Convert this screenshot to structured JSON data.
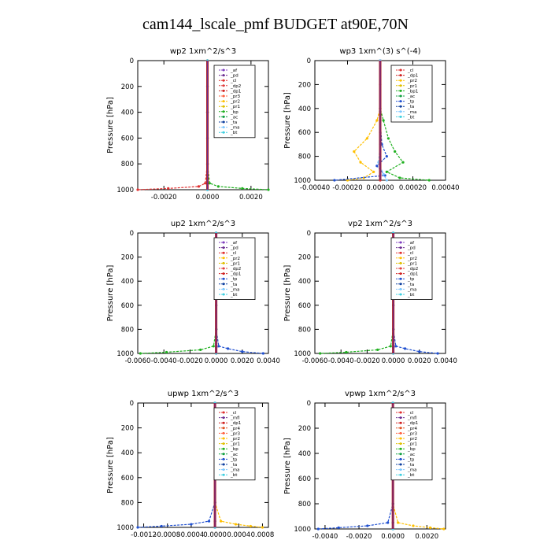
{
  "title": "cam144_lscale_pmf  BUDGET at90E,70N",
  "chart_data": [
    {
      "type": "line",
      "title": "wp2   1xm^2/s^3",
      "ylabel": "Pressure  [hPa]",
      "xlim": [
        -0.0032,
        0.0028
      ],
      "ylim": [
        1000,
        0
      ],
      "xticks": [
        -0.002,
        0.0,
        0.002
      ],
      "xtick_labels": [
        "-0.0020",
        "0.0000",
        "0.0020"
      ],
      "yticks": [
        0,
        200,
        400,
        600,
        800,
        1000
      ],
      "ytick_labels": [
        "0",
        "200",
        "400",
        "600",
        "800",
        "1000"
      ],
      "legend": [
        "_af",
        "_pd",
        "_cl",
        "_dp2",
        "_dp1",
        "_pr3",
        "_pr2",
        "_pr1",
        "_bp",
        "_ac",
        "_ta",
        "_ma",
        "_bt"
      ],
      "series": [
        {
          "name": "_af",
          "color": "#8040c0",
          "x": [
            0,
            0,
            0,
            0,
            0,
            0,
            0
          ],
          "y": [
            0,
            200,
            400,
            600,
            800,
            950,
            1000
          ]
        },
        {
          "name": "_pd",
          "color": "#6a2c91",
          "x": [
            0,
            0,
            0,
            0,
            0,
            0,
            0
          ],
          "y": [
            0,
            200,
            400,
            600,
            800,
            950,
            1000
          ]
        },
        {
          "name": "_cl",
          "color": "#e03030",
          "x": [
            0,
            0,
            0,
            -0.0001,
            -0.0004,
            -0.0018,
            -0.0032
          ],
          "y": [
            0,
            400,
            800,
            950,
            975,
            990,
            1000
          ]
        },
        {
          "name": "_pr1",
          "color": "#20b020",
          "x": [
            0,
            0,
            0,
            0.0001,
            0.0005,
            0.0016,
            0.0028
          ],
          "y": [
            0,
            400,
            800,
            950,
            975,
            990,
            1000
          ]
        },
        {
          "name": "_bt",
          "color": "#40d0e0",
          "x": [
            0,
            0,
            0,
            0,
            0,
            0,
            0
          ],
          "y": [
            0,
            200,
            400,
            600,
            800,
            950,
            1000
          ]
        }
      ]
    },
    {
      "type": "line",
      "title": "wp3   1xm^(3) s^(-4)",
      "ylabel": "Pressure  [hPa]",
      "xlim": [
        -0.0004,
        0.0004
      ],
      "ylim": [
        1000,
        0
      ],
      "xticks": [
        -0.0004,
        -0.0002,
        0.0,
        0.0002,
        0.0004
      ],
      "xtick_labels": [
        "-0.00040",
        "-0.00020",
        "0.00000",
        "0.00020",
        "0.00040"
      ],
      "yticks": [
        0,
        200,
        400,
        600,
        800,
        1000
      ],
      "ytick_labels": [
        "0",
        "200",
        "400",
        "600",
        "800",
        "1000"
      ],
      "legend": [
        "_cl",
        "_dp1",
        "_pr2",
        "_pr1",
        "_bp1",
        "_ac",
        "_tp",
        "_ta",
        "_ma",
        "_bt"
      ],
      "series": [
        {
          "name": "_cl",
          "color": "#e03030",
          "x": [
            0,
            0,
            0,
            0,
            0,
            0,
            0
          ],
          "y": [
            0,
            200,
            400,
            600,
            800,
            950,
            1000
          ]
        },
        {
          "name": "_pr2",
          "color": "#ffc000",
          "x": [
            0,
            0,
            -2e-05,
            -8e-05,
            -0.00016,
            -0.00012,
            -4e-05,
            -0.0001,
            -0.0002
          ],
          "y": [
            0,
            400,
            500,
            650,
            760,
            850,
            930,
            980,
            1000
          ]
        },
        {
          "name": "_bp1",
          "color": "#20b020",
          "x": [
            0,
            0,
            2e-05,
            5e-05,
            9e-05,
            0.00014,
            4e-05,
            0.00012,
            0.0003
          ],
          "y": [
            0,
            400,
            500,
            650,
            760,
            850,
            930,
            980,
            1000
          ]
        },
        {
          "name": "_tp",
          "color": "#2050d0",
          "x": [
            0,
            0,
            1e-05,
            4e-05,
            -2e-05,
            3e-05,
            -0.00028
          ],
          "y": [
            0,
            500,
            700,
            800,
            880,
            960,
            1000
          ]
        },
        {
          "name": "_ma",
          "color": "#80c8ff",
          "x": [
            0,
            0,
            0,
            -1e-05,
            2e-05,
            4e-05
          ],
          "y": [
            0,
            400,
            700,
            850,
            950,
            1000
          ]
        }
      ]
    },
    {
      "type": "line",
      "title": "up2   1xm^2/s^3",
      "ylabel": "Pressure  [hPa]",
      "xlim": [
        -0.006,
        0.004
      ],
      "ylim": [
        1000,
        0
      ],
      "xticks": [
        -0.006,
        -0.004,
        -0.002,
        0.0,
        0.002,
        0.004
      ],
      "xtick_labels": [
        "-0.0060",
        "-0.0040",
        "-0.0020",
        "0.0000",
        "0.0020",
        "0.0040"
      ],
      "yticks": [
        0,
        200,
        400,
        600,
        800,
        1000
      ],
      "ytick_labels": [
        "0",
        "200",
        "400",
        "600",
        "800",
        "1000"
      ],
      "legend": [
        "_af",
        "_pd",
        "_cl",
        "_pr2",
        "_pr1",
        "_dp2",
        "_dp1",
        "_tp",
        "_ta",
        "_ma",
        "_bt"
      ],
      "series": [
        {
          "name": "_af",
          "color": "#8040c0",
          "x": [
            0,
            0,
            0,
            0,
            0,
            0,
            0
          ],
          "y": [
            0,
            200,
            400,
            600,
            800,
            950,
            1000
          ]
        },
        {
          "name": "_cl",
          "color": "#e03030",
          "x": [
            0,
            0,
            0,
            0,
            0,
            0,
            0
          ],
          "y": [
            0,
            200,
            400,
            600,
            800,
            950,
            1000
          ]
        },
        {
          "name": "_dp1",
          "color": "#20b020",
          "x": [
            0,
            0,
            0,
            -0.0002,
            -0.0012,
            -0.0038,
            -0.0058
          ],
          "y": [
            0,
            400,
            800,
            940,
            970,
            990,
            1000
          ]
        },
        {
          "name": "_tp",
          "color": "#2050d0",
          "x": [
            0,
            0,
            0.0002,
            0.0009,
            0.002,
            0.0036
          ],
          "y": [
            0,
            800,
            940,
            960,
            985,
            1000
          ]
        },
        {
          "name": "_bt",
          "color": "#40d0e0",
          "x": [
            0,
            0,
            0,
            0,
            0,
            0,
            0
          ],
          "y": [
            0,
            200,
            400,
            600,
            800,
            950,
            1000
          ]
        }
      ]
    },
    {
      "type": "line",
      "title": "vp2   1xm^2/s^3",
      "ylabel": "Pressure  [hPa]",
      "xlim": [
        -0.006,
        0.004
      ],
      "ylim": [
        1000,
        0
      ],
      "xticks": [
        -0.006,
        -0.004,
        -0.002,
        0.0,
        0.002,
        0.004
      ],
      "xtick_labels": [
        "-0.0060",
        "-0.0040",
        "-0.0020",
        "0.0000",
        "0.0020",
        "0.0040"
      ],
      "yticks": [
        0,
        200,
        400,
        600,
        800,
        1000
      ],
      "ytick_labels": [
        "0",
        "200",
        "400",
        "600",
        "800",
        "1000"
      ],
      "legend": [
        "_af",
        "_pd",
        "_cl",
        "_pr2",
        "_pr1",
        "_dp2",
        "_dp1",
        "_tp",
        "_ta",
        "_ma",
        "_bt"
      ],
      "series": [
        {
          "name": "_af",
          "color": "#8040c0",
          "x": [
            0,
            0,
            0,
            0,
            0,
            0,
            0
          ],
          "y": [
            0,
            200,
            400,
            600,
            800,
            950,
            1000
          ]
        },
        {
          "name": "_cl",
          "color": "#e03030",
          "x": [
            0,
            0,
            0,
            0,
            0,
            0,
            0
          ],
          "y": [
            0,
            200,
            400,
            600,
            800,
            950,
            1000
          ]
        },
        {
          "name": "_dp1",
          "color": "#20b020",
          "x": [
            0,
            0,
            0,
            -0.0002,
            -0.0012,
            -0.0036,
            -0.0056
          ],
          "y": [
            0,
            400,
            800,
            940,
            970,
            990,
            1000
          ]
        },
        {
          "name": "_tp",
          "color": "#2050d0",
          "x": [
            0,
            0,
            0.0002,
            0.0009,
            0.002,
            0.0034
          ],
          "y": [
            0,
            800,
            940,
            960,
            985,
            1000
          ]
        },
        {
          "name": "_bt",
          "color": "#40d0e0",
          "x": [
            0,
            0,
            0,
            0,
            0,
            0,
            0
          ],
          "y": [
            0,
            200,
            400,
            600,
            800,
            950,
            1000
          ]
        }
      ]
    },
    {
      "type": "line",
      "title": "upwp   1xm^2/s^3",
      "ylabel": "Pressure  [hPa]",
      "xlim": [
        -0.0013,
        0.0009
      ],
      "ylim": [
        1000,
        0
      ],
      "xticks": [
        -0.0012,
        -0.0008,
        -0.0004,
        0.0,
        0.0004,
        0.0008
      ],
      "xtick_labels": [
        "-0.0012",
        "-0.0008",
        "-0.0004",
        "0.0000",
        "0.0004",
        "0.0008"
      ],
      "yticks": [
        0,
        200,
        400,
        600,
        800,
        1000
      ],
      "ytick_labels": [
        "0",
        "200",
        "400",
        "600",
        "800",
        "1000"
      ],
      "legend": [
        "_cl",
        "_mfl",
        "_dp1",
        "_pr4",
        "_pr3",
        "_pr2",
        "_pr1",
        "_bp",
        "_ac",
        "_tp",
        "_ta",
        "_ma",
        "_bt"
      ],
      "series": [
        {
          "name": "_cl",
          "color": "#8040c0",
          "x": [
            0,
            0,
            0,
            0,
            0,
            0,
            0
          ],
          "y": [
            0,
            200,
            400,
            600,
            800,
            950,
            1000
          ]
        },
        {
          "name": "_mfl",
          "color": "#6a2c91",
          "x": [
            0,
            0,
            0,
            0,
            0,
            0,
            0
          ],
          "y": [
            0,
            200,
            400,
            600,
            800,
            950,
            1000
          ]
        },
        {
          "name": "_pr2",
          "color": "#ffc000",
          "x": [
            0,
            0,
            0.0001,
            0.00035,
            0.0006,
            0.0008
          ],
          "y": [
            0,
            800,
            950,
            975,
            990,
            1000
          ]
        },
        {
          "name": "_tp",
          "color": "#2050d0",
          "x": [
            0,
            0,
            -0.0001,
            -0.0004,
            -0.0009,
            -0.0013
          ],
          "y": [
            0,
            800,
            950,
            975,
            990,
            1000
          ]
        },
        {
          "name": "_bt",
          "color": "#40d0e0",
          "x": [
            0,
            0,
            0,
            0,
            0,
            0,
            0
          ],
          "y": [
            0,
            200,
            400,
            600,
            800,
            950,
            1000
          ]
        }
      ]
    },
    {
      "type": "line",
      "title": "vpwp   1xm^2/s^3",
      "ylabel": "Pressure  [hPa]",
      "xlim": [
        -0.0046,
        0.0031
      ],
      "ylim": [
        1000,
        0
      ],
      "xticks": [
        -0.004,
        -0.002,
        0.0,
        0.002
      ],
      "xtick_labels": [
        "-0.0040",
        "-0.0020",
        "0.0000",
        "0.0020"
      ],
      "yticks": [
        0,
        200,
        400,
        600,
        800,
        1000
      ],
      "ytick_labels": [
        "0",
        "200",
        "400",
        "600",
        "800",
        "1000"
      ],
      "legend": [
        "_cl",
        "_mfl",
        "_dp1",
        "_pr4",
        "_pr3",
        "_pr2",
        "_pr1",
        "_bp",
        "_ac",
        "_tp",
        "_ta",
        "_ma",
        "_bt"
      ],
      "series": [
        {
          "name": "_cl",
          "color": "#8040c0",
          "x": [
            0,
            0,
            0,
            0,
            0,
            0,
            0
          ],
          "y": [
            0,
            200,
            400,
            600,
            800,
            950,
            1000
          ]
        },
        {
          "name": "_mfl",
          "color": "#6a2c91",
          "x": [
            0,
            0,
            0,
            0,
            0,
            0,
            0
          ],
          "y": [
            0,
            200,
            400,
            600,
            800,
            950,
            1000
          ]
        },
        {
          "name": "_pr2",
          "color": "#ffc000",
          "x": [
            0,
            0,
            0.0003,
            0.0012,
            0.0022,
            0.003
          ],
          "y": [
            0,
            800,
            950,
            975,
            990,
            1000
          ]
        },
        {
          "name": "_tp",
          "color": "#2050d0",
          "x": [
            0,
            0,
            -0.0003,
            -0.0015,
            -0.0032,
            -0.0044
          ],
          "y": [
            0,
            800,
            950,
            975,
            990,
            1000
          ]
        },
        {
          "name": "_bt",
          "color": "#40d0e0",
          "x": [
            0,
            0,
            0,
            0,
            0,
            0,
            0
          ],
          "y": [
            0,
            200,
            400,
            600,
            800,
            950,
            1000
          ]
        }
      ]
    }
  ],
  "legend_colors": {
    "_af": "#8040c0",
    "_pd": "#6a2c91",
    "_cl": "#e03030",
    "_mfl": "#6a2c91",
    "_dp2": "#e04040",
    "_dp1": "#d02020",
    "_pr4": "#e05020",
    "_pr3": "#ff6040",
    "_pr2": "#ffc000",
    "_pr1": "#e0c000",
    "_bp": "#20b020",
    "_bp1": "#20b020",
    "_ac": "#10a040",
    "_tp": "#2050d0",
    "_ta": "#1040a0",
    "_ma": "#80c8ff",
    "_bt": "#40d0e0"
  }
}
